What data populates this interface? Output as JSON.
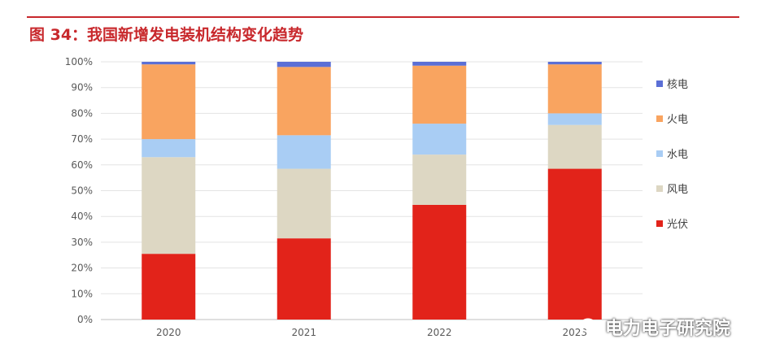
{
  "figure_title": "图 34：我国新增发电装机结构变化趋势",
  "watermark": "电力电子研究院",
  "chart_data": {
    "type": "bar",
    "stacked": true,
    "percent": true,
    "categories": [
      "2020",
      "2021",
      "2022",
      "2023"
    ],
    "series": [
      {
        "name": "光伏",
        "color": "#e2231a",
        "values": [
          25.5,
          31.5,
          44.5,
          58.5
        ]
      },
      {
        "name": "风电",
        "color": "#ddd7c3",
        "values": [
          37.5,
          27.0,
          19.5,
          17.0
        ]
      },
      {
        "name": "水电",
        "color": "#a9cdf4",
        "values": [
          7.0,
          13.0,
          12.0,
          4.5
        ]
      },
      {
        "name": "火电",
        "color": "#f9a460",
        "values": [
          29.0,
          26.5,
          22.5,
          19.0
        ]
      },
      {
        "name": "核电",
        "color": "#5b6fd6",
        "values": [
          1.0,
          2.0,
          1.5,
          1.0
        ]
      }
    ],
    "yticks": [
      "0%",
      "10%",
      "20%",
      "30%",
      "40%",
      "50%",
      "60%",
      "70%",
      "80%",
      "90%",
      "100%"
    ],
    "ylim": [
      0,
      100
    ],
    "grid": true,
    "legend_position": "right"
  }
}
